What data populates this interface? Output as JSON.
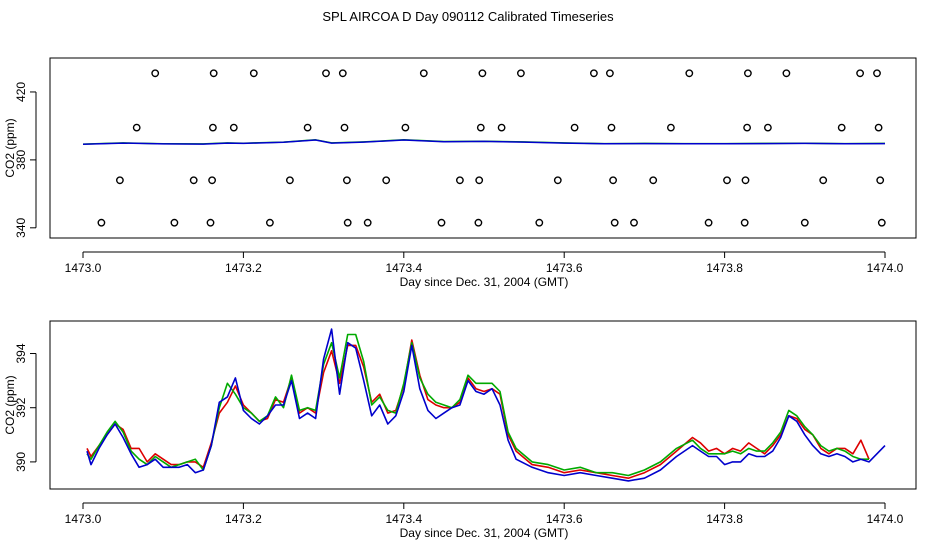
{
  "title": "SPL AIRCOA D  Day 090112  Calibrated Timeseries",
  "colors": {
    "red": "#dd0000",
    "green": "#00aa00",
    "blue": "#0000cc",
    "axis": "#000000"
  },
  "chart_data": [
    {
      "type": "scatter",
      "xlabel": "Day since Dec. 31, 2004 (GMT)",
      "ylabel": "CO2 (ppm)",
      "xlim": [
        1473.0,
        1474.0
      ],
      "ylim": [
        334,
        440
      ],
      "x_ticks": [
        "1473.0",
        "1473.2",
        "1473.4",
        "1473.6",
        "1473.8",
        "1474.0"
      ],
      "y_ticks": [
        "340",
        "380",
        "420"
      ],
      "grid": false,
      "points": [
        [
          1473.023,
          343
        ],
        [
          1473.046,
          368
        ],
        [
          1473.067,
          399
        ],
        [
          1473.09,
          431
        ],
        [
          1473.114,
          343
        ],
        [
          1473.138,
          368
        ],
        [
          1473.159,
          343
        ],
        [
          1473.161,
          368
        ],
        [
          1473.162,
          399
        ],
        [
          1473.163,
          431
        ],
        [
          1473.188,
          399
        ],
        [
          1473.213,
          431
        ],
        [
          1473.233,
          343
        ],
        [
          1473.258,
          368
        ],
        [
          1473.28,
          399
        ],
        [
          1473.303,
          431
        ],
        [
          1473.324,
          431
        ],
        [
          1473.326,
          399
        ],
        [
          1473.329,
          368
        ],
        [
          1473.33,
          343
        ],
        [
          1473.355,
          343
        ],
        [
          1473.378,
          368
        ],
        [
          1473.402,
          399
        ],
        [
          1473.425,
          431
        ],
        [
          1473.447,
          343
        ],
        [
          1473.47,
          368
        ],
        [
          1473.493,
          343
        ],
        [
          1473.494,
          368
        ],
        [
          1473.496,
          399
        ],
        [
          1473.498,
          431
        ],
        [
          1473.522,
          399
        ],
        [
          1473.546,
          431
        ],
        [
          1473.569,
          343
        ],
        [
          1473.592,
          368
        ],
        [
          1473.613,
          399
        ],
        [
          1473.637,
          431
        ],
        [
          1473.657,
          431
        ],
        [
          1473.659,
          399
        ],
        [
          1473.661,
          368
        ],
        [
          1473.663,
          343
        ],
        [
          1473.687,
          343
        ],
        [
          1473.711,
          368
        ],
        [
          1473.733,
          399
        ],
        [
          1473.756,
          431
        ],
        [
          1473.78,
          343
        ],
        [
          1473.803,
          368
        ],
        [
          1473.825,
          343
        ],
        [
          1473.826,
          368
        ],
        [
          1473.828,
          399
        ],
        [
          1473.829,
          431
        ],
        [
          1473.854,
          399
        ],
        [
          1473.877,
          431
        ],
        [
          1473.9,
          343
        ],
        [
          1473.923,
          368
        ],
        [
          1473.946,
          399
        ],
        [
          1473.969,
          431
        ],
        [
          1473.99,
          431
        ],
        [
          1473.992,
          399
        ],
        [
          1473.994,
          368
        ],
        [
          1473.996,
          343
        ]
      ],
      "series": [
        {
          "name": "",
          "color": "#00aa00",
          "x": [
            1473.0,
            1473.05,
            1473.1,
            1473.15,
            1473.18,
            1473.2,
            1473.25,
            1473.29,
            1473.31,
            1473.35,
            1473.4,
            1473.45,
            1473.5,
            1473.55,
            1473.6,
            1473.65,
            1473.7,
            1473.75,
            1473.8,
            1473.85,
            1473.9,
            1473.95,
            1474.0
          ],
          "y": [
            389.3,
            390.0,
            389.5,
            389.4,
            390.0,
            389.8,
            390.5,
            391.8,
            390.0,
            390.6,
            391.8,
            390.8,
            391.0,
            390.6,
            390.0,
            389.6,
            389.7,
            389.6,
            389.6,
            389.7,
            389.8,
            389.6,
            389.7
          ]
        },
        {
          "name": "",
          "color": "#0000cc",
          "x": [
            1473.0,
            1473.05,
            1473.1,
            1473.15,
            1473.18,
            1473.2,
            1473.25,
            1473.29,
            1473.31,
            1473.35,
            1473.4,
            1473.45,
            1473.5,
            1473.55,
            1473.6,
            1473.65,
            1473.7,
            1473.75,
            1473.8,
            1473.85,
            1473.9,
            1473.95,
            1474.0
          ],
          "y": [
            389.2,
            389.9,
            389.4,
            389.3,
            389.9,
            389.7,
            390.4,
            391.7,
            389.9,
            390.5,
            391.7,
            390.7,
            390.9,
            390.5,
            389.9,
            389.5,
            389.6,
            389.5,
            389.5,
            389.6,
            389.7,
            389.5,
            389.6
          ]
        }
      ]
    },
    {
      "type": "line",
      "xlabel": "Day since Dec. 31, 2004 (GMT)",
      "ylabel": "CO2 (ppm)",
      "xlim": [
        1473.0,
        1474.0
      ],
      "ylim": [
        389.0,
        395.2
      ],
      "x_ticks": [
        "1473.0",
        "1473.2",
        "1473.4",
        "1473.6",
        "1473.8",
        "1474.0"
      ],
      "y_ticks": [
        "390",
        "392",
        "394"
      ],
      "grid": false,
      "series": [
        {
          "name": "",
          "color": "#dd0000",
          "x": [
            1473.005,
            1473.01,
            1473.02,
            1473.03,
            1473.04,
            1473.05,
            1473.06,
            1473.07,
            1473.08,
            1473.09,
            1473.1,
            1473.11,
            1473.12,
            1473.13,
            1473.14,
            1473.15,
            1473.16,
            1473.17,
            1473.18,
            1473.19,
            1473.2,
            1473.21,
            1473.22,
            1473.23,
            1473.24,
            1473.25,
            1473.26,
            1473.27,
            1473.28,
            1473.29,
            1473.3,
            1473.31,
            1473.32,
            1473.33,
            1473.34,
            1473.35,
            1473.36,
            1473.37,
            1473.38,
            1473.39,
            1473.4,
            1473.41,
            1473.42,
            1473.43,
            1473.44,
            1473.45,
            1473.46,
            1473.47,
            1473.48,
            1473.49,
            1473.5,
            1473.51,
            1473.52,
            1473.53,
            1473.54,
            1473.56,
            1473.58,
            1473.6,
            1473.62,
            1473.64,
            1473.66,
            1473.68,
            1473.7,
            1473.72,
            1473.74,
            1473.76,
            1473.77,
            1473.78,
            1473.79,
            1473.8,
            1473.81,
            1473.82,
            1473.83,
            1473.84,
            1473.85,
            1473.86,
            1473.87,
            1473.88,
            1473.89,
            1473.9,
            1473.91,
            1473.92,
            1473.93,
            1473.94,
            1473.95,
            1473.96,
            1473.97,
            1473.98
          ],
          "y": [
            390.5,
            390.2,
            390.6,
            391.0,
            391.4,
            391.2,
            390.5,
            390.5,
            390.0,
            390.3,
            390.1,
            389.9,
            389.9,
            390.0,
            390.0,
            389.8,
            390.7,
            391.8,
            392.2,
            392.8,
            392.1,
            391.8,
            391.5,
            391.6,
            392.3,
            392.2,
            393.1,
            391.8,
            392.0,
            391.8,
            393.3,
            394.1,
            392.9,
            394.3,
            394.3,
            393.5,
            392.2,
            392.5,
            391.8,
            391.9,
            392.8,
            394.5,
            393.2,
            392.3,
            392.1,
            392.0,
            392.0,
            392.2,
            393.1,
            392.7,
            392.6,
            392.7,
            392.5,
            391.0,
            390.4,
            389.9,
            389.8,
            389.6,
            389.7,
            389.6,
            389.5,
            389.4,
            389.6,
            389.9,
            390.4,
            390.9,
            390.7,
            390.4,
            390.5,
            390.3,
            390.5,
            390.4,
            390.7,
            390.5,
            390.3,
            390.6,
            391.0,
            391.7,
            391.6,
            391.2,
            391.0,
            390.5,
            390.3,
            390.5,
            390.5,
            390.3,
            390.8,
            390.1
          ]
        },
        {
          "name": "",
          "color": "#00aa00",
          "x": [
            1473.005,
            1473.01,
            1473.02,
            1473.03,
            1473.04,
            1473.05,
            1473.06,
            1473.07,
            1473.08,
            1473.09,
            1473.1,
            1473.11,
            1473.12,
            1473.13,
            1473.14,
            1473.15,
            1473.16,
            1473.17,
            1473.18,
            1473.19,
            1473.2,
            1473.21,
            1473.22,
            1473.23,
            1473.24,
            1473.25,
            1473.26,
            1473.27,
            1473.28,
            1473.29,
            1473.3,
            1473.31,
            1473.32,
            1473.33,
            1473.34,
            1473.35,
            1473.36,
            1473.37,
            1473.38,
            1473.39,
            1473.4,
            1473.41,
            1473.42,
            1473.43,
            1473.44,
            1473.45,
            1473.46,
            1473.47,
            1473.48,
            1473.49,
            1473.5,
            1473.51,
            1473.52,
            1473.53,
            1473.54,
            1473.56,
            1473.58,
            1473.6,
            1473.62,
            1473.64,
            1473.66,
            1473.68,
            1473.7,
            1473.72,
            1473.74,
            1473.76,
            1473.77,
            1473.78,
            1473.79,
            1473.8,
            1473.81,
            1473.82,
            1473.83,
            1473.84,
            1473.85,
            1473.86,
            1473.87,
            1473.88,
            1473.89,
            1473.9,
            1473.91,
            1473.92,
            1473.93,
            1473.94,
            1473.95,
            1473.96,
            1473.97,
            1473.98
          ],
          "y": [
            390.3,
            390.1,
            390.6,
            391.1,
            391.5,
            391.1,
            390.4,
            390.1,
            389.9,
            390.2,
            390.0,
            389.8,
            389.9,
            390.0,
            390.1,
            389.7,
            390.6,
            392.0,
            392.9,
            392.5,
            392.0,
            391.8,
            391.5,
            391.7,
            392.4,
            392.0,
            393.2,
            391.9,
            392.0,
            391.9,
            393.6,
            394.4,
            393.1,
            394.7,
            394.7,
            393.7,
            392.1,
            392.4,
            391.9,
            391.8,
            392.9,
            394.4,
            393.1,
            392.5,
            392.2,
            392.1,
            392.0,
            392.3,
            393.2,
            392.9,
            392.9,
            392.9,
            392.6,
            391.1,
            390.5,
            390.0,
            389.9,
            389.7,
            389.8,
            389.6,
            389.6,
            389.5,
            389.7,
            390.0,
            390.5,
            390.8,
            390.5,
            390.3,
            390.3,
            390.3,
            390.4,
            390.3,
            390.5,
            390.4,
            390.4,
            390.7,
            391.1,
            391.9,
            391.7,
            391.3,
            391.0,
            390.6,
            390.4,
            390.5,
            390.4,
            390.2,
            390.1,
            390.1
          ]
        },
        {
          "name": "",
          "color": "#0000cc",
          "x": [
            1473.005,
            1473.01,
            1473.02,
            1473.03,
            1473.04,
            1473.05,
            1473.06,
            1473.07,
            1473.08,
            1473.09,
            1473.1,
            1473.11,
            1473.12,
            1473.13,
            1473.14,
            1473.15,
            1473.16,
            1473.17,
            1473.18,
            1473.19,
            1473.2,
            1473.21,
            1473.22,
            1473.23,
            1473.24,
            1473.25,
            1473.26,
            1473.27,
            1473.28,
            1473.29,
            1473.3,
            1473.31,
            1473.32,
            1473.33,
            1473.34,
            1473.35,
            1473.36,
            1473.37,
            1473.38,
            1473.39,
            1473.4,
            1473.41,
            1473.42,
            1473.43,
            1473.44,
            1473.45,
            1473.46,
            1473.47,
            1473.48,
            1473.49,
            1473.5,
            1473.51,
            1473.52,
            1473.53,
            1473.54,
            1473.56,
            1473.58,
            1473.6,
            1473.62,
            1473.64,
            1473.66,
            1473.68,
            1473.7,
            1473.72,
            1473.74,
            1473.76,
            1473.77,
            1473.78,
            1473.79,
            1473.8,
            1473.81,
            1473.82,
            1473.83,
            1473.84,
            1473.85,
            1473.86,
            1473.87,
            1473.88,
            1473.89,
            1473.9,
            1473.91,
            1473.92,
            1473.93,
            1473.94,
            1473.95,
            1473.96,
            1473.97,
            1473.98,
            1474.0
          ],
          "y": [
            390.4,
            389.9,
            390.5,
            391.0,
            391.4,
            390.9,
            390.3,
            389.8,
            389.9,
            390.1,
            389.8,
            389.8,
            389.8,
            389.9,
            389.6,
            389.7,
            390.6,
            392.2,
            392.4,
            393.1,
            391.9,
            391.6,
            391.4,
            391.7,
            392.1,
            392.1,
            393.0,
            391.6,
            391.8,
            391.6,
            393.8,
            394.9,
            392.5,
            394.4,
            394.2,
            393.0,
            391.7,
            392.1,
            391.4,
            391.7,
            392.6,
            394.3,
            392.7,
            391.9,
            391.6,
            391.8,
            392.0,
            392.1,
            393.0,
            392.6,
            392.5,
            392.7,
            392.1,
            390.8,
            390.1,
            389.8,
            389.6,
            389.5,
            389.6,
            389.5,
            389.4,
            389.3,
            389.4,
            389.7,
            390.2,
            390.6,
            390.4,
            390.2,
            390.2,
            389.9,
            390.0,
            390.0,
            390.3,
            390.2,
            390.2,
            390.4,
            390.9,
            391.7,
            391.5,
            391.0,
            390.6,
            390.3,
            390.2,
            390.3,
            390.2,
            390.0,
            390.1,
            390.0,
            390.6
          ]
        }
      ]
    }
  ]
}
